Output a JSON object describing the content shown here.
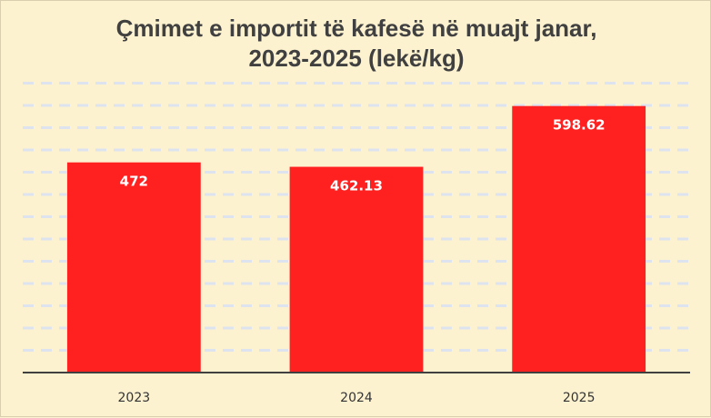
{
  "chart_data": {
    "type": "bar",
    "title_line1": "Çmimet e importit të kafesë në muajt janar,",
    "title_line2": "2023-2025 (lekë/kg)",
    "categories": [
      "2023",
      "2024",
      "2025"
    ],
    "values": [
      472,
      462.13,
      598.62
    ],
    "value_labels": [
      "472",
      "462.13",
      "598.62"
    ],
    "xlabel": "",
    "ylabel": "",
    "ylim": [
      0,
      700
    ],
    "grid": true,
    "legend": "none",
    "colors": {
      "bar": "#ff2020",
      "background": "#fdf2cf",
      "grid": "#dde4f0",
      "axis": "#404040"
    }
  }
}
